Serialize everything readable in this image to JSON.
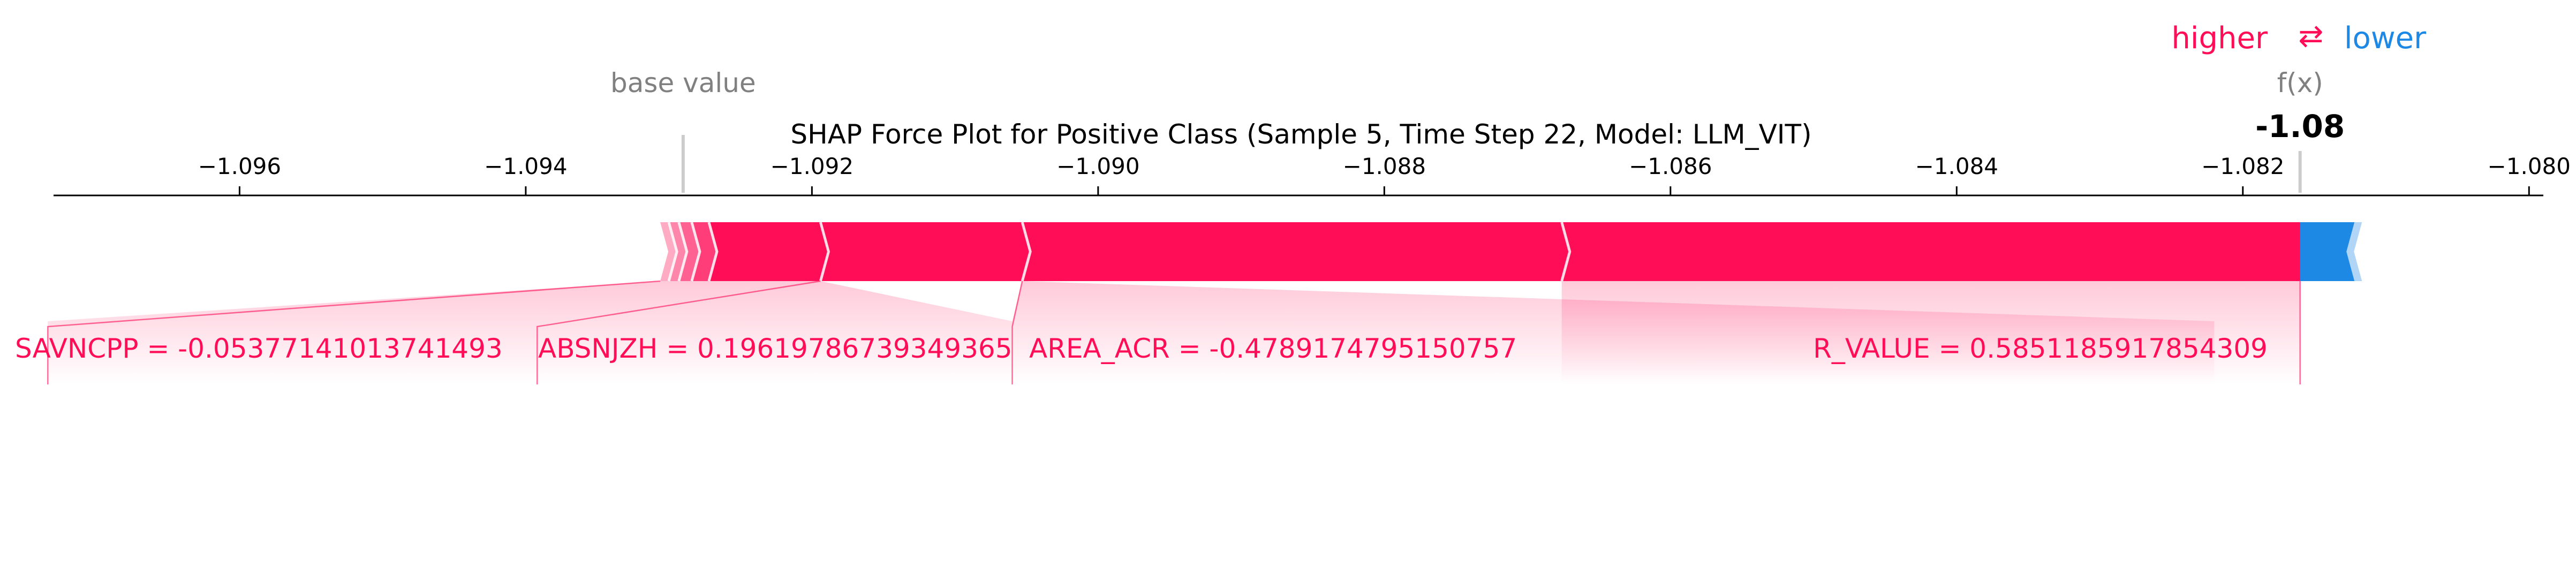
{
  "chart_data": {
    "type": "force",
    "title": "SHAP Force Plot for Positive Class (Sample 5, Time Step 22, Model: LLM_VIT)",
    "xlim": [
      -1.0973,
      -1.0799
    ],
    "ticks": [
      {
        "value": -1.096,
        "label": "−1.096"
      },
      {
        "value": -1.094,
        "label": "−1.094"
      },
      {
        "value": -1.092,
        "label": "−1.092"
      },
      {
        "value": -1.09,
        "label": "−1.090"
      },
      {
        "value": -1.088,
        "label": "−1.088"
      },
      {
        "value": -1.086,
        "label": "−1.086"
      },
      {
        "value": -1.084,
        "label": "−1.084"
      },
      {
        "value": -1.082,
        "label": "−1.082"
      },
      {
        "value": -1.08,
        "label": "−1.080"
      }
    ],
    "base_value": -1.0929,
    "base_value_label": "base value",
    "output_value": -1.0816,
    "output_label": "f(x)",
    "output_display": "-1.08",
    "legend": {
      "higher": "higher",
      "arrow": "⇄",
      "lower": "lower",
      "higher_color": "#ff0d57",
      "lower_color": "#1e88e5"
    },
    "positive_segments": [
      {
        "start": -1.09306,
        "end": -1.093
      },
      {
        "start": -1.093,
        "end": -1.09293
      },
      {
        "start": -1.09293,
        "end": -1.09284
      },
      {
        "start": -1.09284,
        "end": -1.09272
      },
      {
        "start": -1.09272,
        "end": -1.09194
      },
      {
        "start": -1.09194,
        "end": -1.09053
      },
      {
        "start": -1.09053,
        "end": -1.08676
      },
      {
        "start": -1.08676,
        "end": -1.0816
      }
    ],
    "negative_segments": [
      {
        "start": -1.0816,
        "end": -1.08122
      }
    ],
    "feature_labels": [
      {
        "text": "SAVNCPP = -0.05377141013741493",
        "anchor": "start",
        "value_at": -1.09734,
        "seg_start": -1.09306,
        "seg_end": -1.09194
      },
      {
        "text": "ABSNJZH = 0.19619786739349365",
        "anchor": "start",
        "value_at": -1.09392,
        "seg_start": -1.09194,
        "seg_end": -1.09194
      },
      {
        "text": "AREA_ACR = -0.4789174795150757",
        "anchor": "start",
        "value_at": -1.0906,
        "seg_start": -1.09053,
        "seg_end": -1.09053
      },
      {
        "text": "R_VALUE = 0.5851185917854309",
        "anchor": "end",
        "value_at": -1.0822,
        "seg_start": -1.08676,
        "seg_end": -1.08676
      }
    ]
  }
}
